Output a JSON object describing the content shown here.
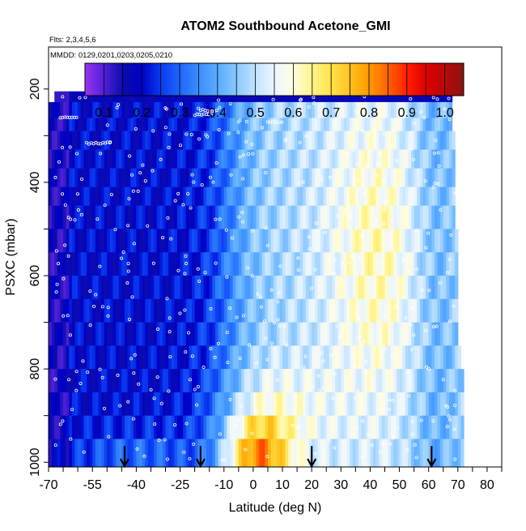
{
  "chart_data": {
    "type": "heatmap",
    "title": "ATOM2 Southbound Acetone_GMI",
    "subtitle_flights": "Flts: 2,3,4,5,6",
    "subtitle_dates": "MMDD: 0129,0201,0203,0205,0210",
    "xlabel": "Latitude (deg N)",
    "ylabel": "PSXC (mbar)",
    "xlim": [
      -70,
      85
    ],
    "ylim": [
      1010,
      110
    ],
    "x_ticks": [
      -70,
      -55,
      -40,
      -25,
      -10,
      0,
      10,
      20,
      30,
      40,
      50,
      60,
      70,
      80
    ],
    "x_tick_labels": [
      "-70",
      "-55",
      "-40",
      "-25",
      "-10",
      "0",
      "10",
      "20",
      "30",
      "40",
      "50",
      "60",
      "70",
      "80"
    ],
    "x_minor_step": 5,
    "y_ticks": [
      200,
      400,
      600,
      800,
      1000
    ],
    "y_tick_labels": [
      "200",
      "400",
      "600",
      "800",
      "1000"
    ],
    "colorbar": {
      "ticks": [
        0.1,
        0.2,
        0.3,
        0.4,
        0.5,
        0.6,
        0.7,
        0.8,
        0.9,
        1.0
      ],
      "tick_labels": [
        "0.1",
        "0.2",
        "0.3",
        "0.4",
        "0.5",
        "0.6",
        "0.7",
        "0.8",
        "0.9",
        "1.0"
      ],
      "range": [
        0.05,
        1.05
      ],
      "stops": [
        {
          "v": 0.05,
          "c": "#9a33f0"
        },
        {
          "v": 0.1,
          "c": "#5020d8"
        },
        {
          "v": 0.15,
          "c": "#0c0cae"
        },
        {
          "v": 0.2,
          "c": "#0000c8"
        },
        {
          "v": 0.25,
          "c": "#0a3af0"
        },
        {
          "v": 0.3,
          "c": "#1f66ff"
        },
        {
          "v": 0.35,
          "c": "#3b8dff"
        },
        {
          "v": 0.4,
          "c": "#5aabff"
        },
        {
          "v": 0.45,
          "c": "#8ac8ff"
        },
        {
          "v": 0.5,
          "c": "#c2e3ff"
        },
        {
          "v": 0.55,
          "c": "#ecf6ff"
        },
        {
          "v": 0.6,
          "c": "#fffde0"
        },
        {
          "v": 0.65,
          "c": "#fff48c"
        },
        {
          "v": 0.7,
          "c": "#ffe34a"
        },
        {
          "v": 0.75,
          "c": "#ffc21e"
        },
        {
          "v": 0.8,
          "c": "#ff9a00"
        },
        {
          "v": 0.85,
          "c": "#ff6200"
        },
        {
          "v": 0.9,
          "c": "#ff2000"
        },
        {
          "v": 0.95,
          "c": "#e00000"
        },
        {
          "v": 1.05,
          "c": "#8c1212"
        }
      ]
    },
    "field_levels": [
      {
        "p_top": 175,
        "p_bot": 205,
        "lat_min": -55,
        "lat_max": 66
      },
      {
        "p_top": 205,
        "p_bot": 228,
        "lat_min": -68,
        "lat_max": 68
      },
      {
        "p_top": 228,
        "p_bot": 262,
        "lat_min": -70,
        "lat_max": 68
      },
      {
        "p_top": 262,
        "p_bot": 290,
        "lat_min": -70,
        "lat_max": 68
      },
      {
        "p_top": 290,
        "p_bot": 330,
        "lat_min": -70,
        "lat_max": 69
      },
      {
        "p_top": 330,
        "p_bot": 370,
        "lat_min": -70,
        "lat_max": 69
      },
      {
        "p_top": 370,
        "p_bot": 410,
        "lat_min": -70,
        "lat_max": 69
      },
      {
        "p_top": 410,
        "p_bot": 450,
        "lat_min": -70,
        "lat_max": 69
      },
      {
        "p_top": 450,
        "p_bot": 500,
        "lat_min": -70,
        "lat_max": 69
      },
      {
        "p_top": 500,
        "p_bot": 550,
        "lat_min": -70,
        "lat_max": 70
      },
      {
        "p_top": 550,
        "p_bot": 600,
        "lat_min": -70,
        "lat_max": 70
      },
      {
        "p_top": 600,
        "p_bot": 650,
        "lat_min": -70,
        "lat_max": 70
      },
      {
        "p_top": 650,
        "p_bot": 700,
        "lat_min": -70,
        "lat_max": 70
      },
      {
        "p_top": 700,
        "p_bot": 750,
        "lat_min": -70,
        "lat_max": 70
      },
      {
        "p_top": 750,
        "p_bot": 800,
        "lat_min": -70,
        "lat_max": 71
      },
      {
        "p_top": 800,
        "p_bot": 850,
        "lat_min": -70,
        "lat_max": 72
      },
      {
        "p_top": 850,
        "p_bot": 900,
        "lat_min": -70,
        "lat_max": 72
      },
      {
        "p_top": 900,
        "p_bot": 950,
        "lat_min": -70,
        "lat_max": 72
      },
      {
        "p_top": 950,
        "p_bot": 1010,
        "lat_min": -70,
        "lat_max": 72
      }
    ],
    "arrows_lat": [
      -44,
      -18,
      20,
      61
    ],
    "arrow_pressure_range": [
      965,
      1010
    ],
    "observation_marker": "open white circle",
    "observation_count_approx": 420
  }
}
